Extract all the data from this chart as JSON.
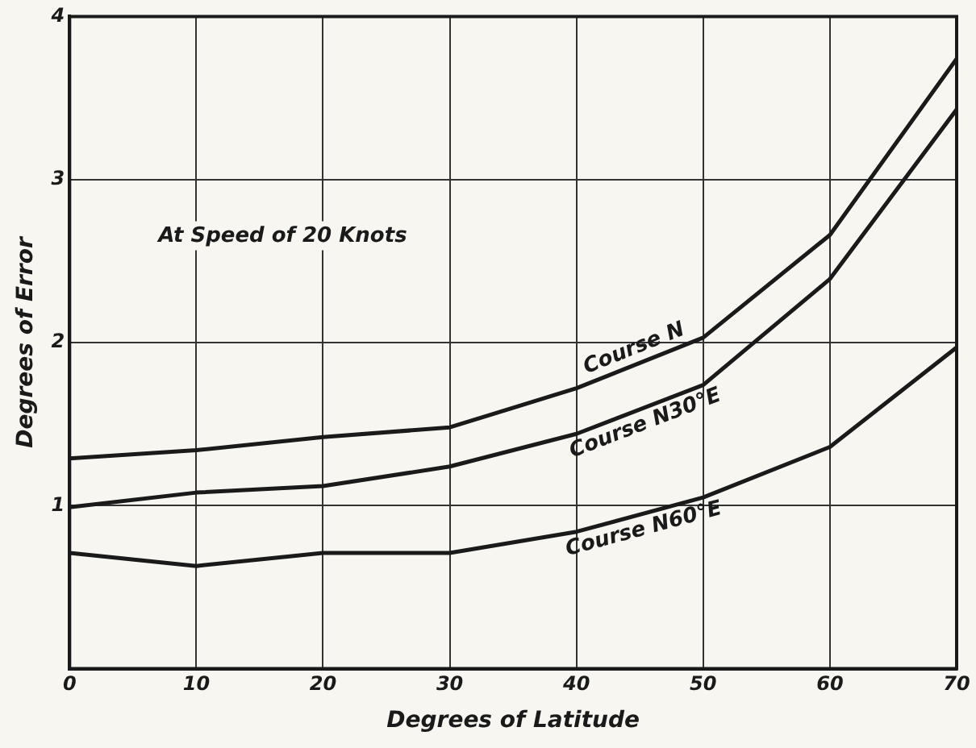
{
  "chart_data": {
    "type": "line",
    "xlabel": "Degrees of Latitude",
    "ylabel": "Degrees of Error",
    "annotations": [
      "At Speed of 20 Knots"
    ],
    "x": [
      0,
      10,
      20,
      30,
      40,
      50,
      60,
      70
    ],
    "series": [
      {
        "name": "Course N",
        "color": "#1a1a1a",
        "values": [
          1.29,
          1.34,
          1.42,
          1.48,
          1.72,
          2.03,
          2.66,
          3.74
        ]
      },
      {
        "name": "Course N30°E",
        "color": "#1a1a1a",
        "values": [
          0.99,
          1.08,
          1.12,
          1.24,
          1.44,
          1.74,
          2.39,
          3.43
        ]
      },
      {
        "name": "Course N60°E",
        "color": "#1a1a1a",
        "values": [
          0.71,
          0.63,
          0.71,
          0.71,
          0.84,
          1.05,
          1.36,
          1.97
        ]
      }
    ],
    "xlim": [
      0,
      70
    ],
    "xticks": [
      0,
      10,
      20,
      30,
      40,
      50,
      60,
      70
    ],
    "ylim": [
      0,
      4
    ],
    "yticks": [
      {
        "value": 0,
        "label": null
      },
      1,
      2,
      3,
      4
    ],
    "grid": true,
    "legend": false,
    "marker": "none",
    "line_style": "solid"
  }
}
